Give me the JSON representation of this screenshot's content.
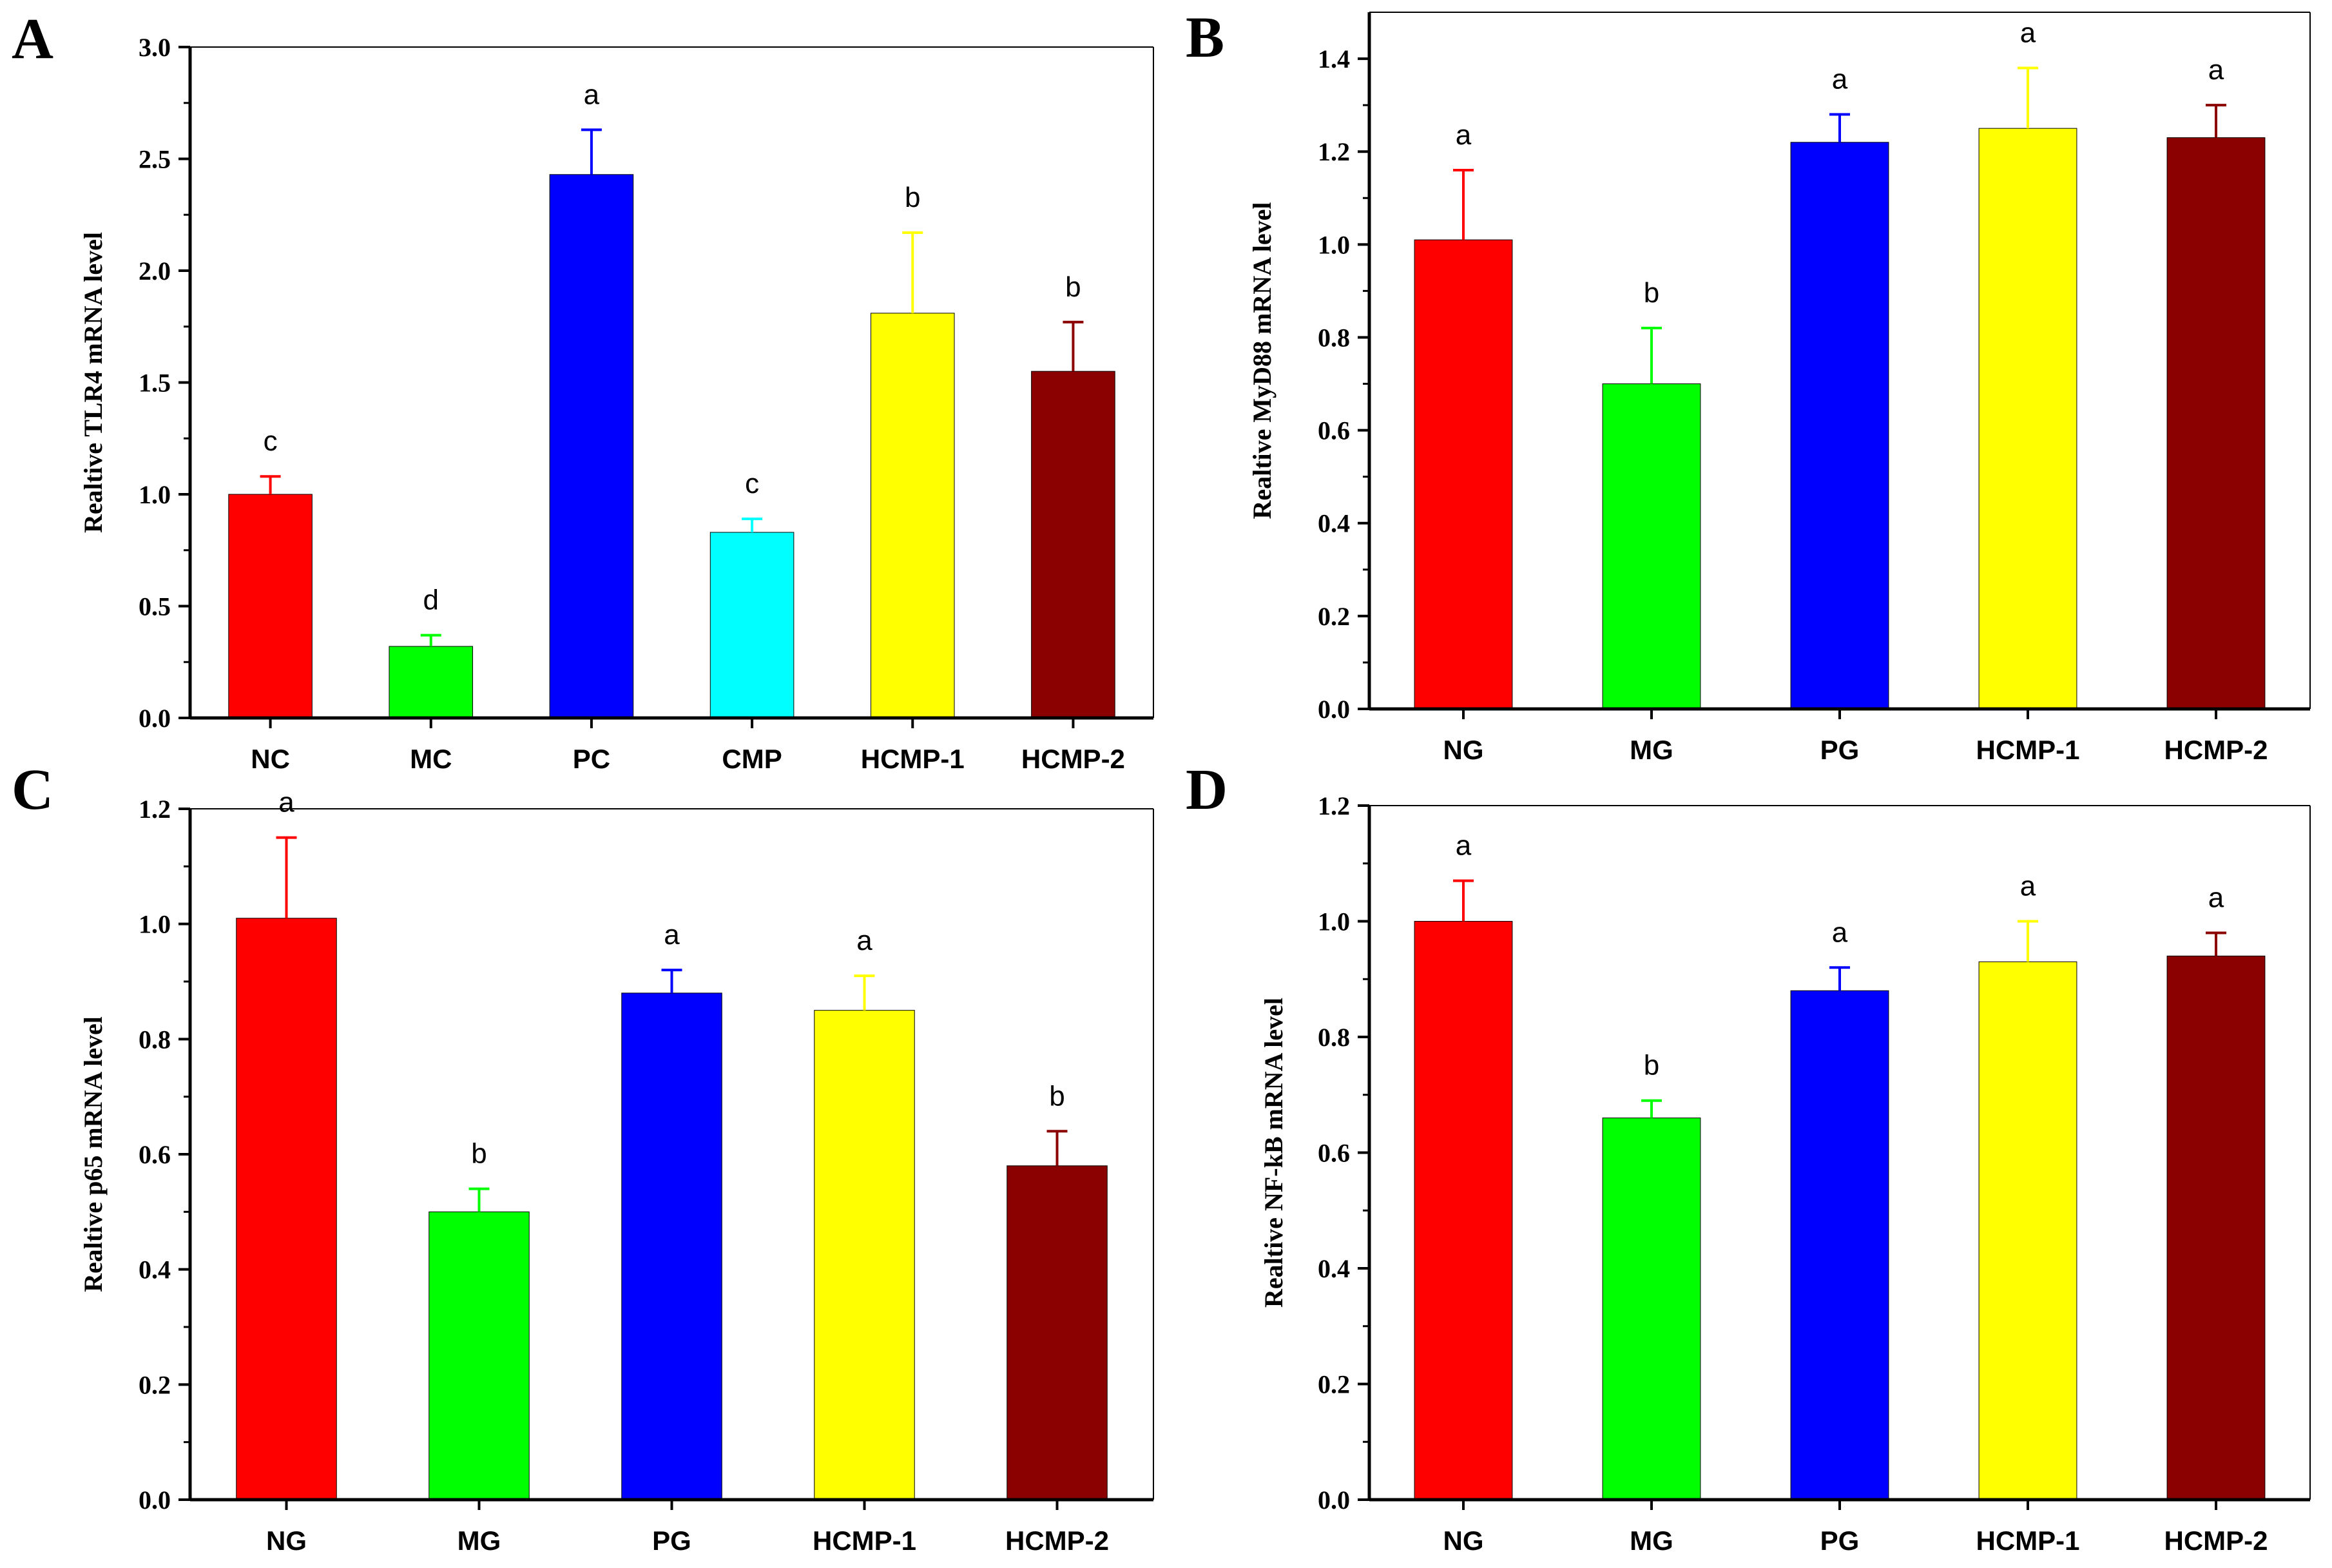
{
  "chart_data": [
    {
      "panel": "A",
      "type": "bar",
      "ylabel": "Realtive TLR4 mRNA level",
      "ylim": [
        0,
        3.0
      ],
      "yticks": [
        0.0,
        0.5,
        1.0,
        1.5,
        2.0,
        2.5,
        3.0
      ],
      "ytick_labels": [
        "0.0",
        "0.5",
        "1.0",
        "1.5",
        "2.0",
        "2.5",
        "3.0"
      ],
      "categories": [
        "NC",
        "MC",
        "PC",
        "CMP",
        "HCMP-1",
        "HCMP-2"
      ],
      "values": [
        1.0,
        0.32,
        2.43,
        0.83,
        1.81,
        1.55
      ],
      "errors": [
        0.08,
        0.05,
        0.2,
        0.06,
        0.36,
        0.22
      ],
      "significance": [
        "c",
        "d",
        "a",
        "c",
        "b",
        "b"
      ],
      "colors": [
        "#ff0000",
        "#00ff00",
        "#0000ff",
        "#00ffff",
        "#ffff00",
        "#8b0000"
      ]
    },
    {
      "panel": "B",
      "type": "bar",
      "ylabel": "Realtive MyD88 mRNA level",
      "ylim": [
        0,
        1.5
      ],
      "yticks": [
        0.0,
        0.2,
        0.4,
        0.6,
        0.8,
        1.0,
        1.2,
        1.4
      ],
      "ytick_labels": [
        "0.0",
        "0.2",
        "0.4",
        "0.6",
        "0.8",
        "1.0",
        "1.2",
        "1.4"
      ],
      "categories": [
        "NG",
        "MG",
        "PG",
        "HCMP-1",
        "HCMP-2"
      ],
      "values": [
        1.01,
        0.7,
        1.22,
        1.25,
        1.23
      ],
      "errors": [
        0.15,
        0.12,
        0.06,
        0.13,
        0.07
      ],
      "significance": [
        "a",
        "b",
        "a",
        "a",
        "a"
      ],
      "colors": [
        "#ff0000",
        "#00ff00",
        "#0000ff",
        "#ffff00",
        "#8b0000"
      ]
    },
    {
      "panel": "C",
      "type": "bar",
      "ylabel": "Realtive p65 mRNA level",
      "ylim": [
        0,
        1.2
      ],
      "yticks": [
        0.0,
        0.2,
        0.4,
        0.6,
        0.8,
        1.0,
        1.2
      ],
      "ytick_labels": [
        "0.0",
        "0.2",
        "0.4",
        "0.6",
        "0.8",
        "1.0",
        "1.2"
      ],
      "categories": [
        "NG",
        "MG",
        "PG",
        "HCMP-1",
        "HCMP-2"
      ],
      "values": [
        1.01,
        0.5,
        0.88,
        0.85,
        0.58
      ],
      "errors": [
        0.14,
        0.04,
        0.04,
        0.06,
        0.06
      ],
      "significance": [
        "a",
        "b",
        "a",
        "a",
        "b"
      ],
      "colors": [
        "#ff0000",
        "#00ff00",
        "#0000ff",
        "#ffff00",
        "#8b0000"
      ]
    },
    {
      "panel": "D",
      "type": "bar",
      "ylabel": "Realtive NF-kB mRNA level",
      "ylim": [
        0,
        1.2
      ],
      "yticks": [
        0.0,
        0.2,
        0.4,
        0.6,
        0.8,
        1.0,
        1.2
      ],
      "ytick_labels": [
        "0.0",
        "0.2",
        "0.4",
        "0.6",
        "0.8",
        "1.0",
        "1.2"
      ],
      "categories": [
        "NG",
        "MG",
        "PG",
        "HCMP-1",
        "HCMP-2"
      ],
      "values": [
        1.0,
        0.66,
        0.88,
        0.93,
        0.94
      ],
      "errors": [
        0.07,
        0.03,
        0.04,
        0.07,
        0.04
      ],
      "significance": [
        "a",
        "b",
        "a",
        "a",
        "a"
      ],
      "colors": [
        "#ff0000",
        "#00ff00",
        "#0000ff",
        "#ffff00",
        "#8b0000"
      ]
    }
  ]
}
